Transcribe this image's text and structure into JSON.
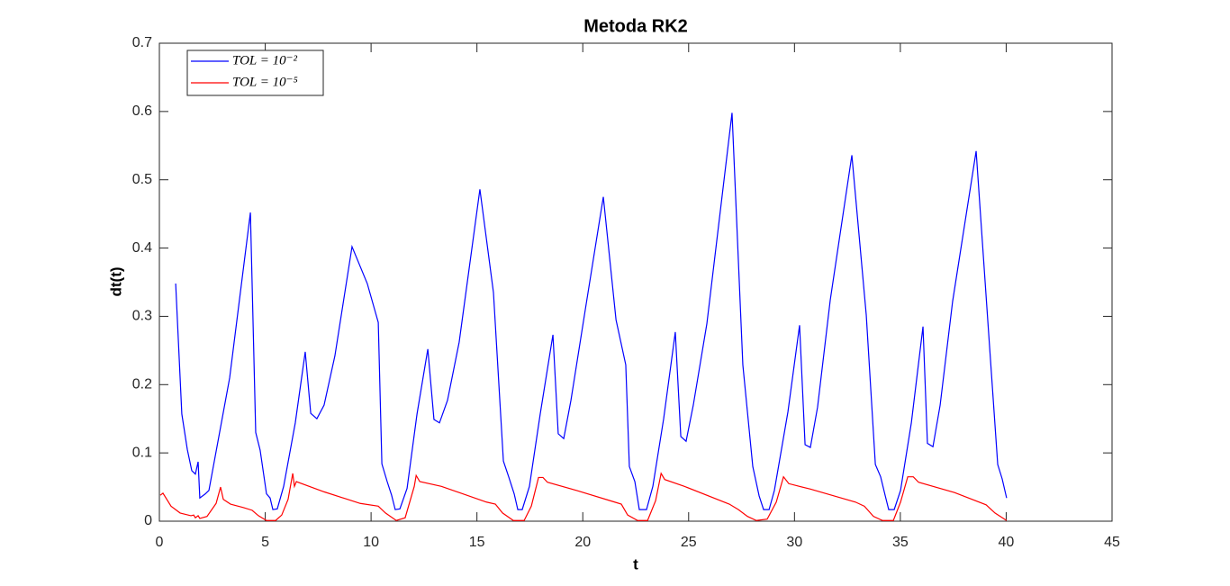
{
  "chart_data": {
    "type": "line",
    "title": "Metoda RK2",
    "x_label": "t",
    "y_label": "dt(t)",
    "xlim": [
      0,
      45
    ],
    "xticks": [
      0,
      5,
      10,
      15,
      20,
      25,
      30,
      35,
      40,
      45
    ],
    "ylim": [
      0,
      0.7
    ],
    "yticks": [
      0,
      0.1,
      0.2,
      0.3,
      0.4,
      0.5,
      0.6,
      0.7
    ],
    "grid": false,
    "legend": "upper-left",
    "series": [
      {
        "name": "TOL = 10⁻²",
        "color": "#0000ff",
        "x": [
          0.77,
          1.06,
          1.32,
          1.53,
          1.7,
          1.83,
          1.91,
          2.17,
          2.34,
          3.32,
          4.3,
          4.55,
          4.76,
          5.06,
          5.23,
          5.36,
          5.57,
          5.87,
          6.42,
          6.89,
          7.15,
          7.44,
          7.78,
          8.29,
          9.1,
          9.82,
          10.34,
          10.51,
          10.76,
          10.97,
          11.14,
          11.36,
          11.7,
          12.17,
          12.68,
          12.97,
          13.23,
          13.61,
          14.16,
          15.14,
          15.78,
          16.25,
          16.5,
          16.76,
          16.93,
          17.14,
          17.48,
          17.99,
          18.59,
          18.84,
          19.1,
          19.44,
          20.12,
          20.97,
          21.57,
          22.03,
          22.2,
          22.46,
          22.67,
          23.01,
          23.31,
          23.82,
          24.37,
          24.63,
          24.88,
          25.22,
          25.86,
          27.05,
          27.56,
          28.03,
          28.33,
          28.54,
          28.8,
          29.05,
          29.69,
          30.24,
          30.5,
          30.75,
          31.09,
          31.69,
          32.71,
          33.39,
          33.82,
          34.07,
          34.28,
          34.45,
          34.71,
          35.01,
          35.52,
          36.07,
          36.28,
          36.54,
          36.88,
          37.47,
          38.58,
          39.17,
          39.6,
          39.81,
          40.02
        ],
        "values": [
          0.348,
          0.157,
          0.105,
          0.074,
          0.069,
          0.087,
          0.034,
          0.04,
          0.045,
          0.21,
          0.452,
          0.13,
          0.104,
          0.04,
          0.034,
          0.017,
          0.018,
          0.051,
          0.144,
          0.248,
          0.158,
          0.15,
          0.17,
          0.242,
          0.402,
          0.348,
          0.291,
          0.084,
          0.058,
          0.038,
          0.017,
          0.018,
          0.048,
          0.157,
          0.252,
          0.149,
          0.144,
          0.177,
          0.262,
          0.486,
          0.335,
          0.088,
          0.065,
          0.04,
          0.017,
          0.017,
          0.051,
          0.157,
          0.273,
          0.128,
          0.121,
          0.177,
          0.31,
          0.475,
          0.295,
          0.229,
          0.08,
          0.058,
          0.017,
          0.017,
          0.051,
          0.15,
          0.277,
          0.124,
          0.117,
          0.17,
          0.289,
          0.598,
          0.229,
          0.08,
          0.037,
          0.017,
          0.017,
          0.045,
          0.16,
          0.287,
          0.112,
          0.108,
          0.167,
          0.324,
          0.536,
          0.302,
          0.083,
          0.065,
          0.038,
          0.017,
          0.017,
          0.045,
          0.144,
          0.285,
          0.114,
          0.109,
          0.17,
          0.322,
          0.542,
          0.276,
          0.083,
          0.062,
          0.034
        ]
      },
      {
        "name": "TOL = 10⁻⁵",
        "color": "#ff0000",
        "x": [
          0.04,
          0.17,
          0.55,
          0.98,
          1.49,
          1.62,
          1.7,
          1.83,
          1.91,
          2.25,
          2.68,
          2.89,
          3.02,
          3.36,
          3.96,
          4.38,
          4.68,
          5.06,
          5.49,
          5.78,
          6.08,
          6.3,
          6.38,
          6.47,
          7.78,
          9.49,
          10.34,
          10.68,
          11.19,
          11.61,
          12.04,
          12.13,
          12.3,
          13.32,
          15.45,
          15.87,
          16.21,
          16.72,
          17.23,
          17.57,
          17.91,
          18.12,
          18.33,
          19.7,
          21.4,
          21.82,
          22.12,
          22.59,
          23.06,
          23.44,
          23.7,
          23.87,
          24.8,
          26.92,
          27.35,
          27.78,
          28.2,
          28.71,
          29.14,
          29.48,
          29.73,
          30.75,
          32.88,
          33.3,
          33.73,
          34.16,
          34.67,
          35.01,
          35.35,
          35.61,
          35.86,
          37.56,
          39.05,
          39.47,
          40.02
        ],
        "values": [
          0.038,
          0.041,
          0.022,
          0.012,
          0.008,
          0.009,
          0.005,
          0.008,
          0.004,
          0.007,
          0.026,
          0.05,
          0.032,
          0.025,
          0.02,
          0.016,
          0.008,
          0.001,
          0.001,
          0.009,
          0.032,
          0.07,
          0.051,
          0.058,
          0.043,
          0.026,
          0.022,
          0.012,
          0.001,
          0.005,
          0.051,
          0.067,
          0.058,
          0.051,
          0.028,
          0.025,
          0.012,
          0.001,
          0.001,
          0.022,
          0.064,
          0.064,
          0.057,
          0.045,
          0.029,
          0.025,
          0.009,
          0.001,
          0.001,
          0.03,
          0.07,
          0.061,
          0.051,
          0.025,
          0.017,
          0.007,
          0.001,
          0.003,
          0.028,
          0.065,
          0.055,
          0.047,
          0.028,
          0.022,
          0.007,
          0.001,
          0.001,
          0.028,
          0.065,
          0.065,
          0.057,
          0.042,
          0.024,
          0.012,
          0.001
        ]
      }
    ]
  }
}
